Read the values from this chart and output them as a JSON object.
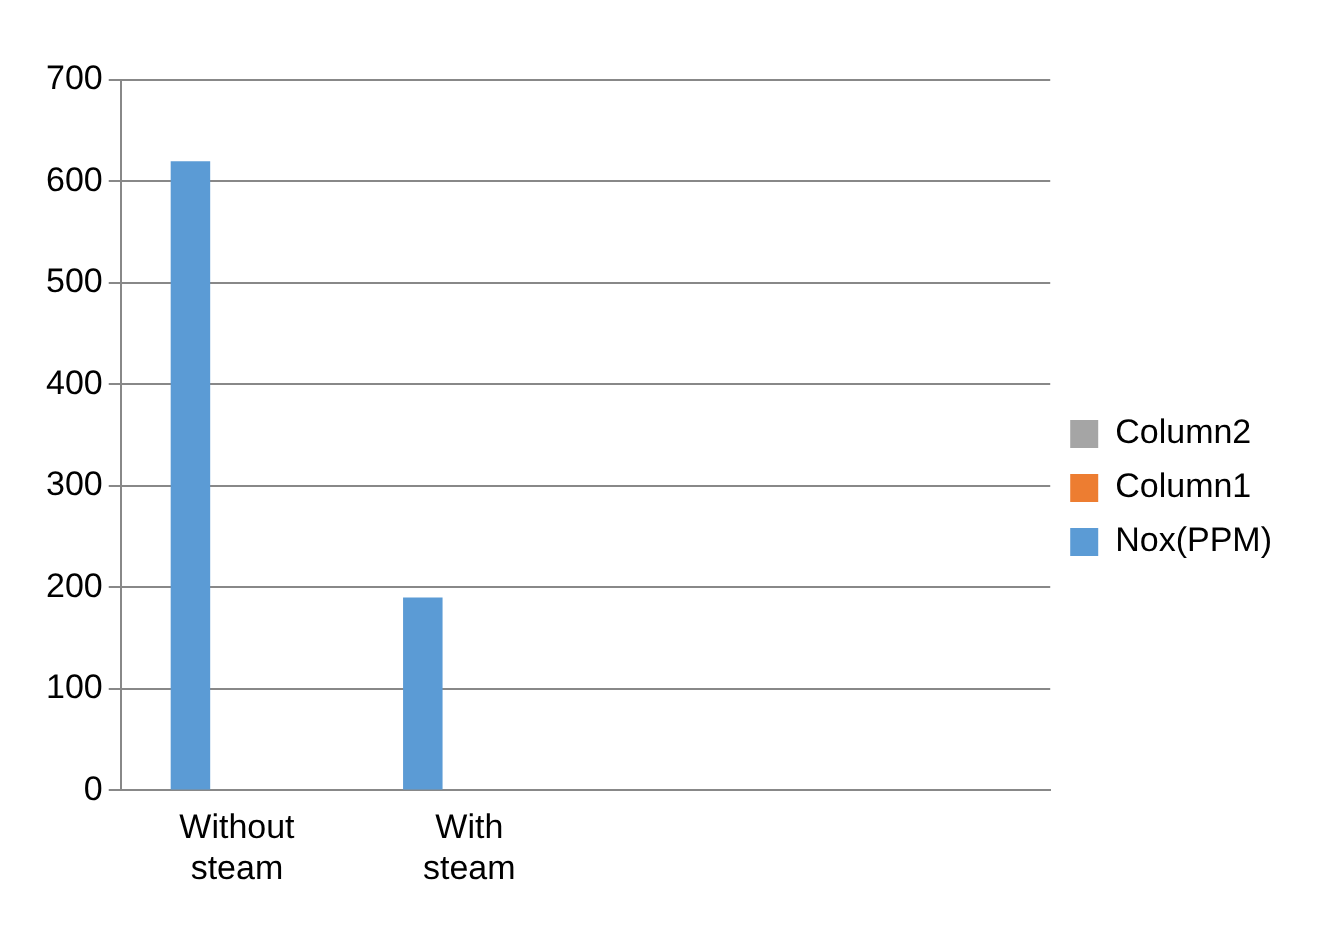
{
  "chart_data": {
    "type": "bar",
    "categories": [
      "Without steam",
      "With steam",
      null,
      null
    ],
    "series": [
      {
        "name": "Nox(PPM)",
        "color": "#5b9bd5",
        "values": [
          620,
          190,
          null,
          null
        ]
      },
      {
        "name": "Column1",
        "color": "#ed7d31",
        "values": [
          null,
          null,
          null,
          null
        ]
      },
      {
        "name": "Column2",
        "color": "#a5a5a5",
        "values": [
          null,
          null,
          null,
          null
        ]
      }
    ],
    "ylim": [
      0,
      700
    ],
    "yticks": [
      0,
      100,
      200,
      300,
      400,
      500,
      600,
      700
    ],
    "grid": "y",
    "legend": "right"
  }
}
